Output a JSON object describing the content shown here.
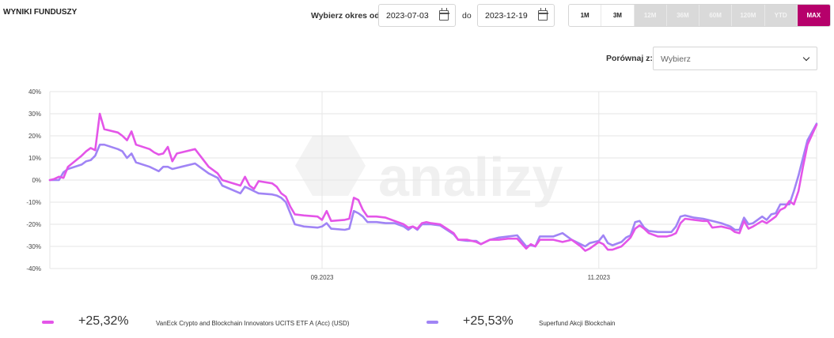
{
  "header": {
    "title": "WYNIKI FUNDUSZY",
    "period_label": "Wybierz okres od",
    "date_from": "2023-07-03",
    "to_label": "do",
    "date_to": "2023-12-19",
    "ranges": [
      {
        "label": "1M",
        "state": "on"
      },
      {
        "label": "3M",
        "state": "on"
      },
      {
        "label": "12M",
        "state": "off"
      },
      {
        "label": "36M",
        "state": "off"
      },
      {
        "label": "60M",
        "state": "off"
      },
      {
        "label": "120M",
        "state": "off"
      },
      {
        "label": "YTD",
        "state": "off"
      },
      {
        "label": "MAX",
        "state": "active"
      }
    ],
    "compare_label": "Porównaj z:",
    "compare_value": "Wybierz",
    "accent_color": "#b6006b"
  },
  "watermark": "analizy",
  "chart_data": {
    "type": "line",
    "x_ticks": [
      "09.2023",
      "11.2023"
    ],
    "y_ticks": [
      "40%",
      "30%",
      "20%",
      "10%",
      "0%",
      "-10%",
      "-20%",
      "-30%",
      "-40%"
    ],
    "ylim": [
      -40,
      40
    ],
    "xlim": [
      "2023-07-03",
      "2023-12-19"
    ],
    "grid": true,
    "series": [
      {
        "name": "VanEck Crypto and Blockchain Innovators UCITS ETF A (Acc) (USD)",
        "color": "#e455e8",
        "total": "+25,32%",
        "points": [
          [
            "2023-07-03",
            0
          ],
          [
            "2023-07-04",
            0.5
          ],
          [
            "2023-07-05",
            1.5
          ],
          [
            "2023-07-06",
            1
          ],
          [
            "2023-07-07",
            6
          ],
          [
            "2023-07-10",
            11
          ],
          [
            "2023-07-11",
            13
          ],
          [
            "2023-07-12",
            14.5
          ],
          [
            "2023-07-13",
            13.5
          ],
          [
            "2023-07-14",
            30
          ],
          [
            "2023-07-15",
            23
          ],
          [
            "2023-07-18",
            21.5
          ],
          [
            "2023-07-19",
            20
          ],
          [
            "2023-07-20",
            18
          ],
          [
            "2023-07-21",
            22
          ],
          [
            "2023-07-22",
            16
          ],
          [
            "2023-07-25",
            14
          ],
          [
            "2023-07-26",
            12.5
          ],
          [
            "2023-07-27",
            11.5
          ],
          [
            "2023-07-28",
            12
          ],
          [
            "2023-07-29",
            15
          ],
          [
            "2023-07-30",
            8.5
          ],
          [
            "2023-07-31",
            12
          ],
          [
            "2023-08-01",
            12.5
          ],
          [
            "2023-08-04",
            14
          ],
          [
            "2023-08-07",
            6
          ],
          [
            "2023-08-09",
            3
          ],
          [
            "2023-08-10",
            0
          ],
          [
            "2023-08-14",
            -2.5
          ],
          [
            "2023-08-15",
            1.5
          ],
          [
            "2023-08-16",
            -2.5
          ],
          [
            "2023-08-17",
            -4
          ],
          [
            "2023-08-18",
            -0.5
          ],
          [
            "2023-08-21",
            -1.5
          ],
          [
            "2023-08-22",
            -3
          ],
          [
            "2023-08-23",
            -6
          ],
          [
            "2023-08-24",
            -7.5
          ],
          [
            "2023-08-25",
            -12
          ],
          [
            "2023-08-26",
            -15.5
          ],
          [
            "2023-08-28",
            -16
          ],
          [
            "2023-08-31",
            -16.5
          ],
          [
            "2023-09-01",
            -18
          ],
          [
            "2023-09-02",
            -14
          ],
          [
            "2023-09-03",
            -18.5
          ],
          [
            "2023-09-06",
            -18
          ],
          [
            "2023-09-07",
            -17.5
          ],
          [
            "2023-09-08",
            -8
          ],
          [
            "2023-09-09",
            -9
          ],
          [
            "2023-09-10",
            -13.5
          ],
          [
            "2023-09-11",
            -16.5
          ],
          [
            "2023-09-13",
            -16.5
          ],
          [
            "2023-09-15",
            -17
          ],
          [
            "2023-09-17",
            -18.5
          ],
          [
            "2023-09-19",
            -20
          ],
          [
            "2023-09-20",
            -21.5
          ],
          [
            "2023-09-21",
            -21
          ],
          [
            "2023-09-22",
            -22
          ],
          [
            "2023-09-23",
            -19.5
          ],
          [
            "2023-09-24",
            -19
          ],
          [
            "2023-09-25",
            -19.5
          ],
          [
            "2023-09-27",
            -20
          ],
          [
            "2023-09-30",
            -24
          ],
          [
            "2023-10-01",
            -27
          ],
          [
            "2023-10-03",
            -27
          ],
          [
            "2023-10-05",
            -28
          ],
          [
            "2023-10-06",
            -29
          ],
          [
            "2023-10-08",
            -27
          ],
          [
            "2023-10-10",
            -27
          ],
          [
            "2023-10-12",
            -26.5
          ],
          [
            "2023-10-14",
            -26.5
          ],
          [
            "2023-10-16",
            -31
          ],
          [
            "2023-10-17",
            -29
          ],
          [
            "2023-10-18",
            -30
          ],
          [
            "2023-10-19",
            -27
          ],
          [
            "2023-10-20",
            -27
          ],
          [
            "2023-10-22",
            -27
          ],
          [
            "2023-10-24",
            -28
          ],
          [
            "2023-10-26",
            -27
          ],
          [
            "2023-10-28",
            -30
          ],
          [
            "2023-10-29",
            -32
          ],
          [
            "2023-10-30",
            -31
          ],
          [
            "2023-11-01",
            -28
          ],
          [
            "2023-11-02",
            -29
          ],
          [
            "2023-11-03",
            -31.5
          ],
          [
            "2023-11-04",
            -31.5
          ],
          [
            "2023-11-06",
            -30
          ],
          [
            "2023-11-07",
            -28
          ],
          [
            "2023-11-08",
            -26
          ],
          [
            "2023-11-09",
            -22
          ],
          [
            "2023-11-10",
            -20.5
          ],
          [
            "2023-11-11",
            -22
          ],
          [
            "2023-11-12",
            -24
          ],
          [
            "2023-11-14",
            -25.5
          ],
          [
            "2023-11-16",
            -25.5
          ],
          [
            "2023-11-17",
            -25
          ],
          [
            "2023-11-18",
            -24
          ],
          [
            "2023-11-19",
            -19.5
          ],
          [
            "2023-11-20",
            -17.5
          ],
          [
            "2023-11-22",
            -18
          ],
          [
            "2023-11-24",
            -18.5
          ],
          [
            "2023-11-25",
            -18.5
          ],
          [
            "2023-11-26",
            -21.5
          ],
          [
            "2023-11-28",
            -21
          ],
          [
            "2023-11-30",
            -22
          ],
          [
            "2023-12-01",
            -23.5
          ],
          [
            "2023-12-02",
            -24
          ],
          [
            "2023-12-03",
            -18.5
          ],
          [
            "2023-12-04",
            -22
          ],
          [
            "2023-12-05",
            -21
          ],
          [
            "2023-12-07",
            -18.5
          ],
          [
            "2023-12-08",
            -19.5
          ],
          [
            "2023-12-09",
            -18
          ],
          [
            "2023-12-10",
            -16.5
          ],
          [
            "2023-12-11",
            -13.5
          ],
          [
            "2023-12-12",
            -12.5
          ],
          [
            "2023-12-13",
            -9.5
          ],
          [
            "2023-12-14",
            -11
          ],
          [
            "2023-12-15",
            -5
          ],
          [
            "2023-12-16",
            6
          ],
          [
            "2023-12-17",
            16
          ],
          [
            "2023-12-19",
            25
          ]
        ]
      },
      {
        "name": "Superfund Akcji Blockchain",
        "color": "#a084f5",
        "total": "+25,53%",
        "points": [
          [
            "2023-07-03",
            0
          ],
          [
            "2023-07-04",
            0
          ],
          [
            "2023-07-05",
            0
          ],
          [
            "2023-07-06",
            3.5
          ],
          [
            "2023-07-07",
            5
          ],
          [
            "2023-07-10",
            7
          ],
          [
            "2023-07-11",
            8.5
          ],
          [
            "2023-07-12",
            9
          ],
          [
            "2023-07-13",
            11
          ],
          [
            "2023-07-14",
            16
          ],
          [
            "2023-07-15",
            16
          ],
          [
            "2023-07-18",
            14
          ],
          [
            "2023-07-19",
            13
          ],
          [
            "2023-07-20",
            10
          ],
          [
            "2023-07-21",
            12
          ],
          [
            "2023-07-22",
            8
          ],
          [
            "2023-07-25",
            6
          ],
          [
            "2023-07-26",
            5
          ],
          [
            "2023-07-27",
            4
          ],
          [
            "2023-07-28",
            6
          ],
          [
            "2023-07-29",
            6
          ],
          [
            "2023-07-30",
            5
          ],
          [
            "2023-07-31",
            5.5
          ],
          [
            "2023-08-01",
            6
          ],
          [
            "2023-08-04",
            7.5
          ],
          [
            "2023-08-07",
            3
          ],
          [
            "2023-08-09",
            1
          ],
          [
            "2023-08-10",
            -2.5
          ],
          [
            "2023-08-14",
            -6
          ],
          [
            "2023-08-15",
            -3
          ],
          [
            "2023-08-16",
            -4
          ],
          [
            "2023-08-17",
            -5
          ],
          [
            "2023-08-18",
            -6
          ],
          [
            "2023-08-21",
            -6.5
          ],
          [
            "2023-08-22",
            -7
          ],
          [
            "2023-08-23",
            -8
          ],
          [
            "2023-08-24",
            -10
          ],
          [
            "2023-08-25",
            -15
          ],
          [
            "2023-08-26",
            -20
          ],
          [
            "2023-08-28",
            -21
          ],
          [
            "2023-08-31",
            -21.5
          ],
          [
            "2023-09-01",
            -21
          ],
          [
            "2023-09-02",
            -19.5
          ],
          [
            "2023-09-03",
            -22
          ],
          [
            "2023-09-06",
            -22.5
          ],
          [
            "2023-09-07",
            -22
          ],
          [
            "2023-09-08",
            -14
          ],
          [
            "2023-09-09",
            -15
          ],
          [
            "2023-09-10",
            -16.5
          ],
          [
            "2023-09-11",
            -19
          ],
          [
            "2023-09-13",
            -19
          ],
          [
            "2023-09-15",
            -19.5
          ],
          [
            "2023-09-17",
            -19.5
          ],
          [
            "2023-09-19",
            -21
          ],
          [
            "2023-09-20",
            -22.5
          ],
          [
            "2023-09-21",
            -21
          ],
          [
            "2023-09-22",
            -22.5
          ],
          [
            "2023-09-23",
            -20
          ],
          [
            "2023-09-24",
            -20
          ],
          [
            "2023-09-25",
            -20
          ],
          [
            "2023-09-27",
            -20.5
          ],
          [
            "2023-09-30",
            -24.5
          ],
          [
            "2023-10-01",
            -27
          ],
          [
            "2023-10-03",
            -27.5
          ],
          [
            "2023-10-05",
            -27.5
          ],
          [
            "2023-10-06",
            -29
          ],
          [
            "2023-10-08",
            -27
          ],
          [
            "2023-10-10",
            -26
          ],
          [
            "2023-10-12",
            -25.5
          ],
          [
            "2023-10-14",
            -25
          ],
          [
            "2023-10-16",
            -30
          ],
          [
            "2023-10-17",
            -29.5
          ],
          [
            "2023-10-18",
            -30
          ],
          [
            "2023-10-19",
            -25.5
          ],
          [
            "2023-10-20",
            -25.5
          ],
          [
            "2023-10-22",
            -25.5
          ],
          [
            "2023-10-24",
            -24
          ],
          [
            "2023-10-26",
            -27
          ],
          [
            "2023-10-28",
            -29
          ],
          [
            "2023-10-29",
            -30
          ],
          [
            "2023-10-30",
            -28.5
          ],
          [
            "2023-11-01",
            -27.5
          ],
          [
            "2023-11-02",
            -25
          ],
          [
            "2023-11-03",
            -28.5
          ],
          [
            "2023-11-04",
            -29.5
          ],
          [
            "2023-11-06",
            -28
          ],
          [
            "2023-11-07",
            -26
          ],
          [
            "2023-11-08",
            -25
          ],
          [
            "2023-11-09",
            -19
          ],
          [
            "2023-11-10",
            -18.5
          ],
          [
            "2023-11-11",
            -21.5
          ],
          [
            "2023-11-12",
            -23
          ],
          [
            "2023-11-14",
            -23.5
          ],
          [
            "2023-11-16",
            -23.5
          ],
          [
            "2023-11-17",
            -23.5
          ],
          [
            "2023-11-18",
            -21
          ],
          [
            "2023-11-19",
            -16.5
          ],
          [
            "2023-11-20",
            -16
          ],
          [
            "2023-11-22",
            -17
          ],
          [
            "2023-11-24",
            -17.5
          ],
          [
            "2023-11-25",
            -18
          ],
          [
            "2023-11-26",
            -18.5
          ],
          [
            "2023-11-28",
            -19.5
          ],
          [
            "2023-11-30",
            -21
          ],
          [
            "2023-12-01",
            -22.5
          ],
          [
            "2023-12-02",
            -22.5
          ],
          [
            "2023-12-03",
            -17
          ],
          [
            "2023-12-04",
            -20
          ],
          [
            "2023-12-05",
            -19.5
          ],
          [
            "2023-12-07",
            -16.5
          ],
          [
            "2023-12-08",
            -18
          ],
          [
            "2023-12-09",
            -15.5
          ],
          [
            "2023-12-10",
            -15
          ],
          [
            "2023-12-11",
            -11
          ],
          [
            "2023-12-12",
            -11
          ],
          [
            "2023-12-13",
            -11
          ],
          [
            "2023-12-14",
            -5
          ],
          [
            "2023-12-15",
            2
          ],
          [
            "2023-12-16",
            10
          ],
          [
            "2023-12-17",
            18
          ],
          [
            "2023-12-19",
            25.5
          ]
        ]
      }
    ]
  }
}
